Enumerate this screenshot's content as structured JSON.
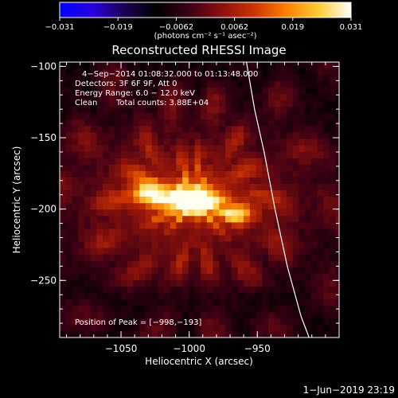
{
  "colorbar": {
    "range": [
      -0.031,
      0.031
    ],
    "tick_labels": [
      "−0.031",
      "−0.019",
      "−0.0062",
      "0.0062",
      "0.019",
      "0.031"
    ],
    "unit_label": "(photons cm⁻² s⁻¹ asec⁻²)",
    "colors": [
      "#0000ff",
      "#2a00e0",
      "#1a0050",
      "#000000",
      "#3b0016",
      "#8b1010",
      "#cc3300",
      "#ff8000",
      "#ffcc33",
      "#ffffff"
    ]
  },
  "chart_data": {
    "type": "heatmap",
    "title": "Reconstructed RHESSI Image",
    "xlabel": "Heliocentric X (arcsec)",
    "ylabel": "Heliocentric Y (arcsec)",
    "xlim": [
      -1095,
      -890
    ],
    "ylim": [
      -290,
      -97
    ],
    "x_ticks": [
      -1050,
      -1000,
      -950
    ],
    "x_tick_labels": [
      "−1050",
      "−1000",
      "−950"
    ],
    "y_ticks": [
      -100,
      -150,
      -200,
      -250
    ],
    "y_tick_labels": [
      "−100",
      "−150",
      "−200",
      "−250"
    ],
    "annotations": {
      "time_range": "4−Sep−2014 01:08:32.000 to 01:13:48.000",
      "detectors": "Detectors: 3F 6F 9F, Att 0",
      "energy": "Energy Range: 6.0 − 12.0 keV",
      "clean_label": "Clean",
      "total_counts": "Total counts: 3.88E+04",
      "peak": "Position of Peak = [−998,−193]"
    },
    "peak_position": [
      -998,
      -193
    ],
    "sources": [
      {
        "x": -998,
        "y": -193,
        "sx": 14,
        "sy": 7,
        "amp": 1.0
      },
      {
        "x": -1030,
        "y": -188,
        "sx": 9,
        "sy": 6,
        "amp": 0.65
      },
      {
        "x": -963,
        "y": -203,
        "sx": 8,
        "sy": 5,
        "amp": 0.55
      },
      {
        "x": -1000,
        "y": -193,
        "sx": 60,
        "sy": 35,
        "amp": 0.35
      }
    ],
    "limb": [
      [
        -958,
        -97
      ],
      [
        -952,
        -130
      ],
      [
        -945,
        -160
      ],
      [
        -937,
        -200
      ],
      [
        -928,
        -240
      ],
      [
        -918,
        -275
      ],
      [
        -912,
        -290
      ]
    ],
    "footer_timestamp": "1−Jun−2019 23:19"
  }
}
